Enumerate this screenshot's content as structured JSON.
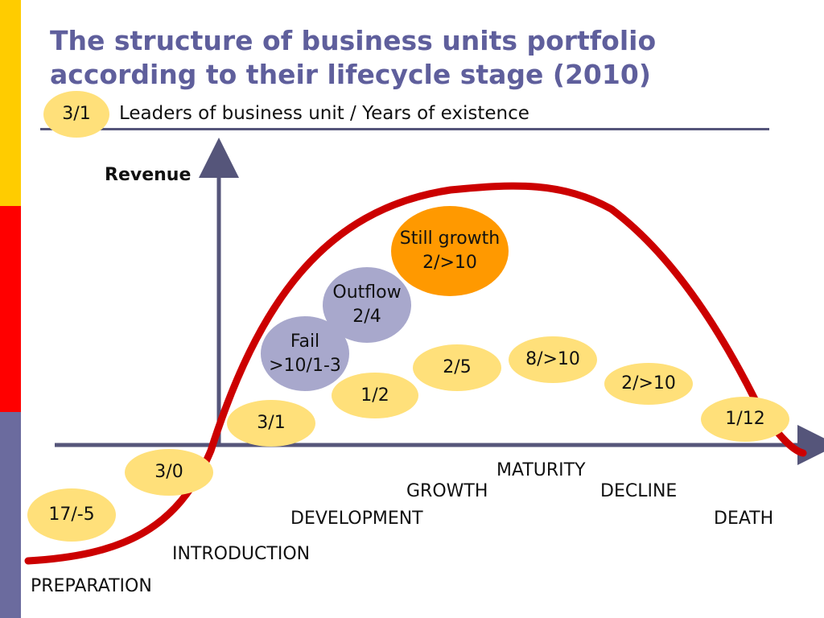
{
  "title": "The structure of business units portfolio according to their lifecycle stage (2010)",
  "legend": {
    "sample": "3/1",
    "text": "Leaders of business unit / Years of existence"
  },
  "y_axis_label": "Revenue",
  "stages": {
    "preparation": "PREPARATION",
    "introduction": "INTRODUCTION",
    "development": "DEVELOPMENT",
    "growth": "GROWTH",
    "maturity": "MATURITY",
    "decline": "DECLINE",
    "death": "DEATH"
  },
  "bubbles": {
    "b1": "17/-5",
    "b2": "3/0",
    "b3": "3/1",
    "b4": "1/2",
    "b5": "2/5",
    "b6": "8/>10",
    "b7": "2/>10",
    "b8": "1/12",
    "fail": [
      "Fail",
      ">10/1-3"
    ],
    "outflow": [
      "Outflow",
      "2/4"
    ],
    "still_growth": [
      "Still growth",
      "2/>10"
    ]
  },
  "colors": {
    "curve": "#CC0000",
    "axes": "#55557A",
    "title": "#5F5F9C",
    "bubble_yellow": "#FFE07A",
    "bubble_grey": "#A8A8CC",
    "bubble_orange": "#FF9900"
  }
}
